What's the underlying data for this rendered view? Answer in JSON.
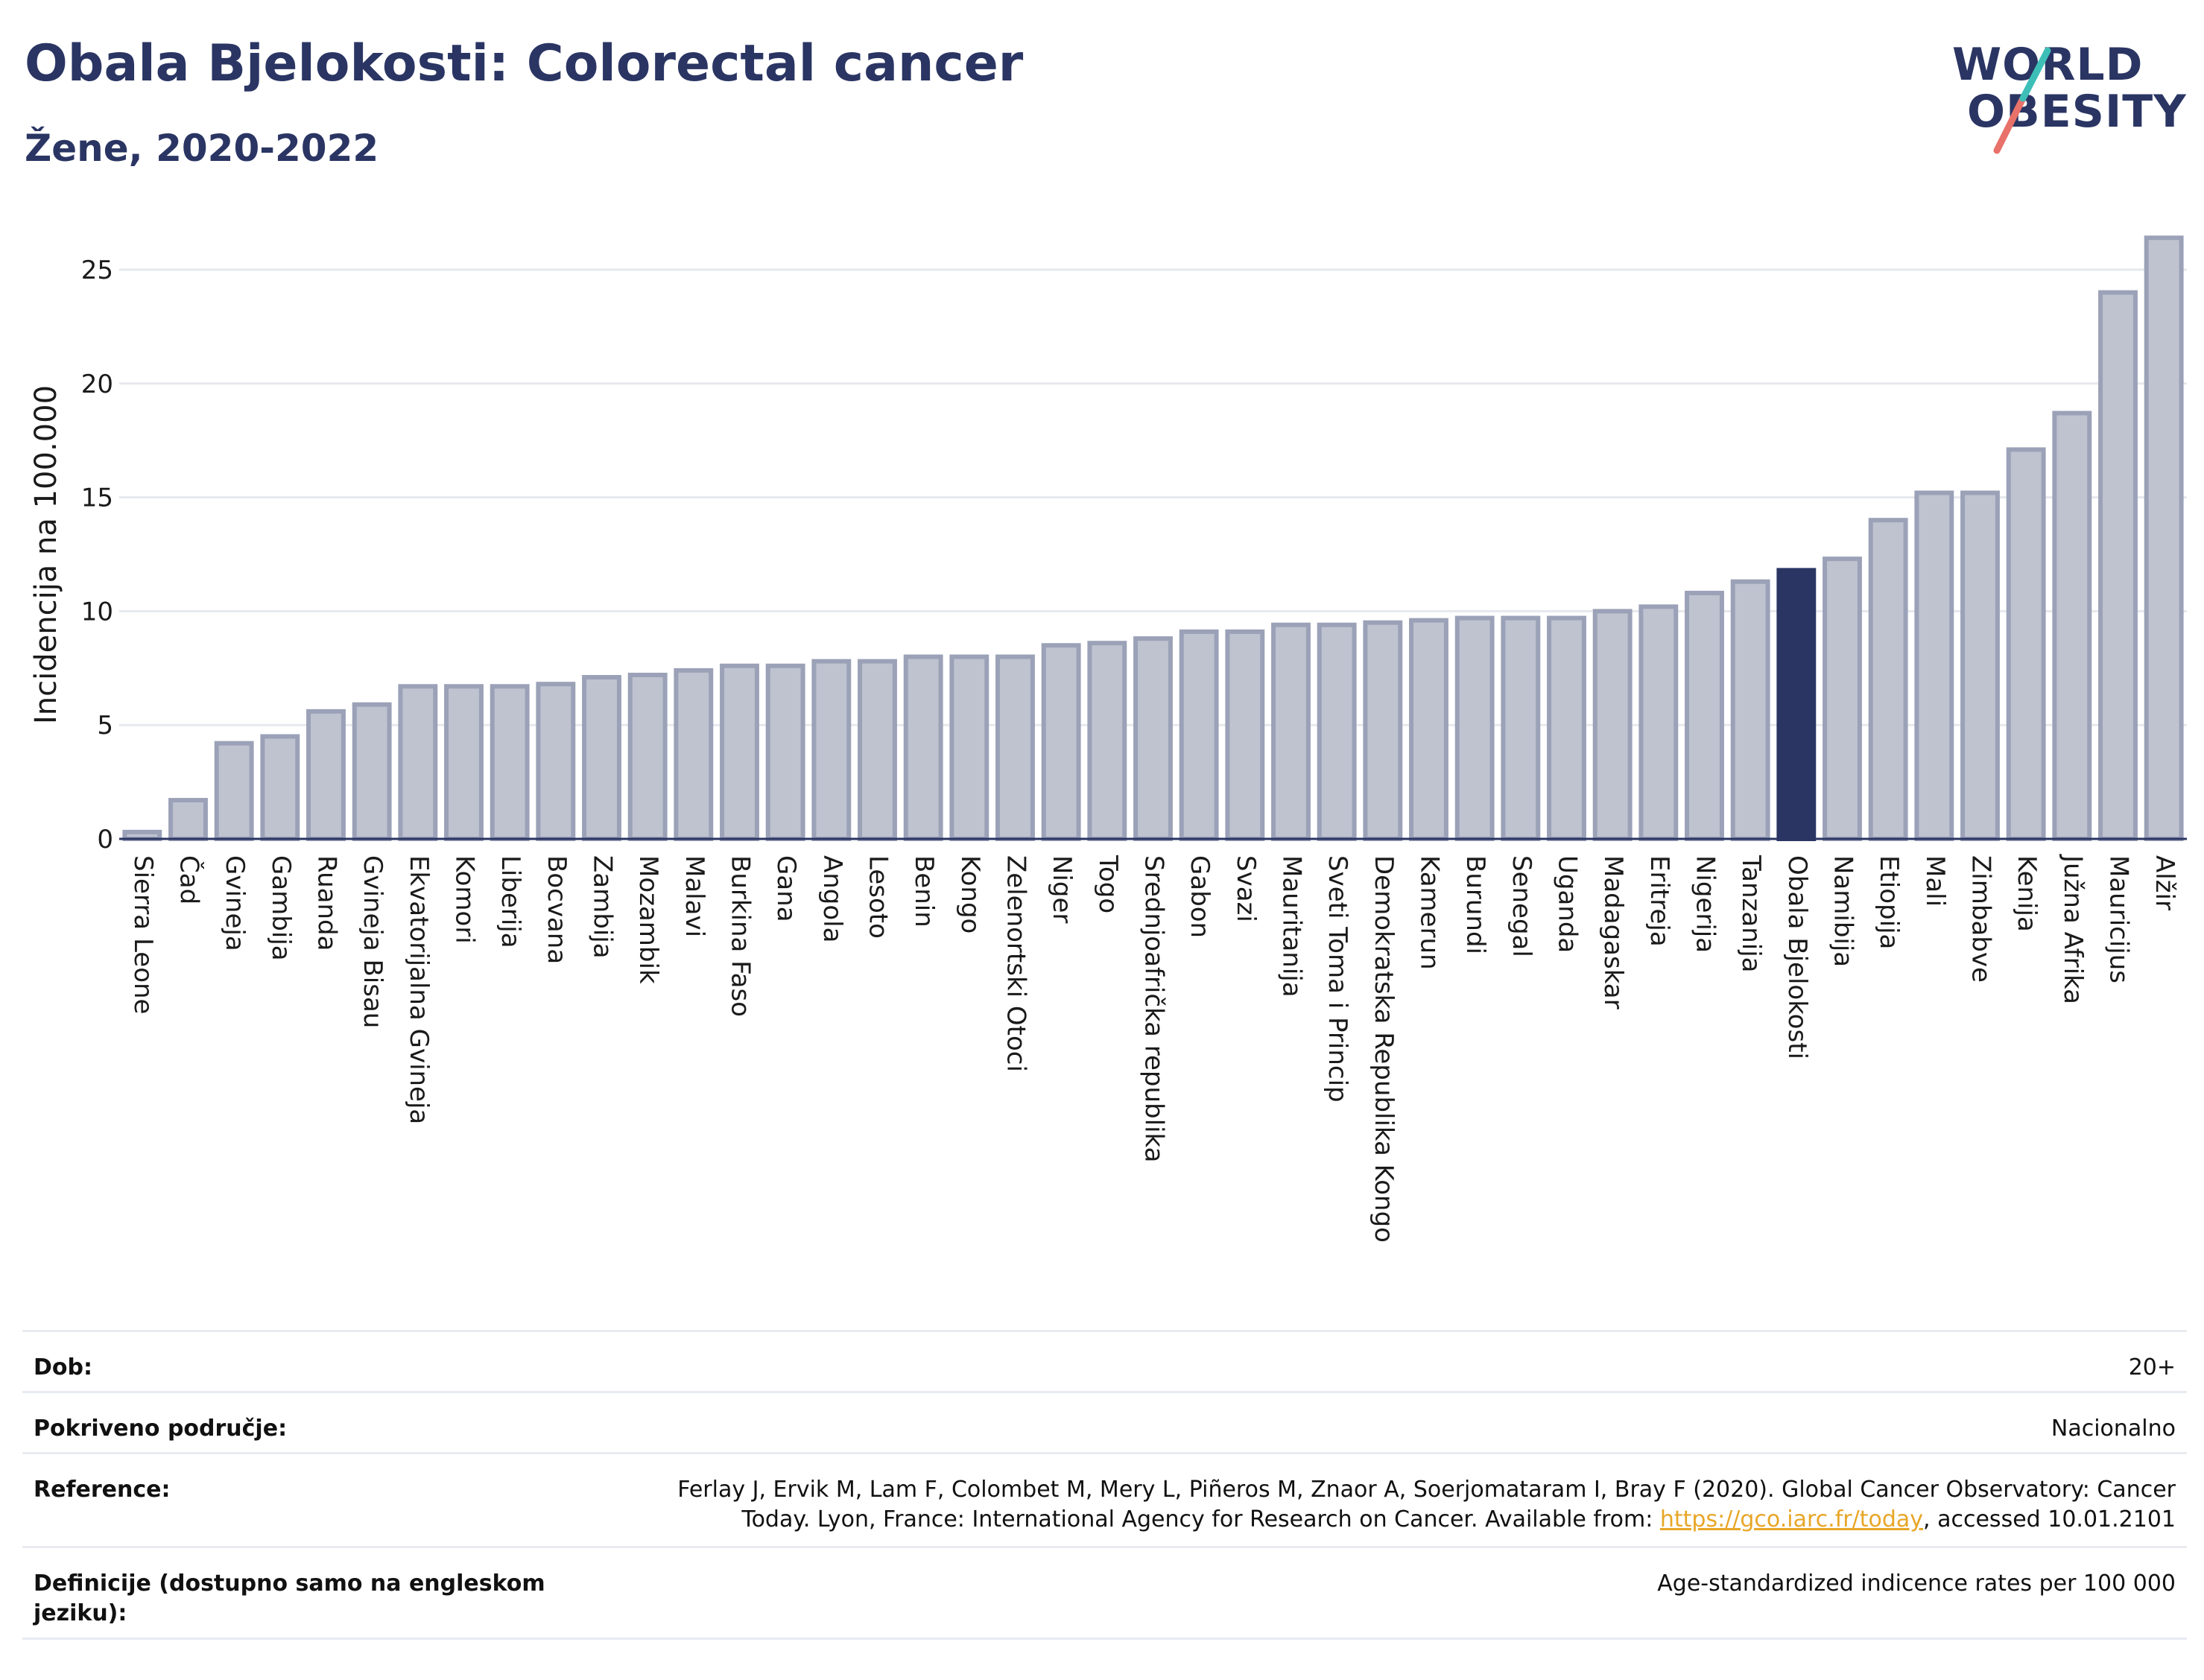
{
  "header": {
    "title": "Obala Bjelokosti: Colorectal cancer",
    "subtitle": "Žene, 2020-2022"
  },
  "logo": {
    "line1": "WORLD",
    "line2": "OBESITY"
  },
  "colors": {
    "bar_fill": "#bfc3d0",
    "bar_stroke": "#9ba1b7",
    "highlight": "#2a3563",
    "logo_teal": "#3dbfb8",
    "logo_coral": "#e8716a",
    "link": "#e8a628"
  },
  "chart_data": {
    "type": "bar",
    "ylabel": "Incidencija na 100.000",
    "ylim": [
      0,
      27
    ],
    "yticks": [
      0,
      5,
      10,
      15,
      20,
      25
    ],
    "grid": true,
    "highlight": "Obala Bjelokosti",
    "categories": [
      "Sierra Leone",
      "Čad",
      "Gvineja",
      "Gambija",
      "Ruanda",
      "Gvineja Bisau",
      "Ekvatorijalna Gvineja",
      "Komori",
      "Liberija",
      "Bocvana",
      "Zambija",
      "Mozambik",
      "Malavi",
      "Burkina Faso",
      "Gana",
      "Angola",
      "Lesoto",
      "Benin",
      "Kongo",
      "Zelenortski Otoci",
      "Niger",
      "Togo",
      "Srednjoafrička republika",
      "Gabon",
      "Svazi",
      "Mauritanija",
      "Sveti Toma i Princip",
      "Demokratska Republika Kongo",
      "Kamerun",
      "Burundi",
      "Senegal",
      "Uganda",
      "Madagaskar",
      "Eritreja",
      "Nigerija",
      "Tanzanija",
      "Obala Bjelokosti",
      "Namibija",
      "Etiopija",
      "Mali",
      "Zimbabve",
      "Kenija",
      "Južna Afrika",
      "Mauricijus",
      "Alžir"
    ],
    "values": [
      0.3,
      1.7,
      4.2,
      4.5,
      5.6,
      5.9,
      6.7,
      6.7,
      6.7,
      6.8,
      7.1,
      7.2,
      7.4,
      7.6,
      7.6,
      7.8,
      7.8,
      8.0,
      8.0,
      8.0,
      8.5,
      8.6,
      8.8,
      9.1,
      9.1,
      9.4,
      9.4,
      9.5,
      9.6,
      9.7,
      9.7,
      9.7,
      10.0,
      10.2,
      10.8,
      11.3,
      11.8,
      12.3,
      14.0,
      15.2,
      15.2,
      17.1,
      18.7,
      24.0,
      26.4
    ]
  },
  "info": {
    "age": {
      "label": "Dob:",
      "value": "20+"
    },
    "coverage": {
      "label": "Pokriveno područje:",
      "value": "Nacionalno"
    },
    "reference": {
      "label": "Reference:",
      "line1": "Ferlay J, Ervik M, Lam F, Colombet M, Mery L, Piñeros M, Znaor A, Soerjomataram I, Bray F (2020). Global Cancer Observatory: Cancer",
      "line2_pre": "Today. Lyon, France: International Agency for Research on Cancer. Available from: ",
      "link": "https://gco.iarc.fr/today",
      "line2_post": ", accessed 10.01.2101"
    },
    "definitions": {
      "label": "Definicije (dostupno samo na engleskom jeziku):",
      "value": "Age-standardized indicence rates per 100 000"
    }
  }
}
